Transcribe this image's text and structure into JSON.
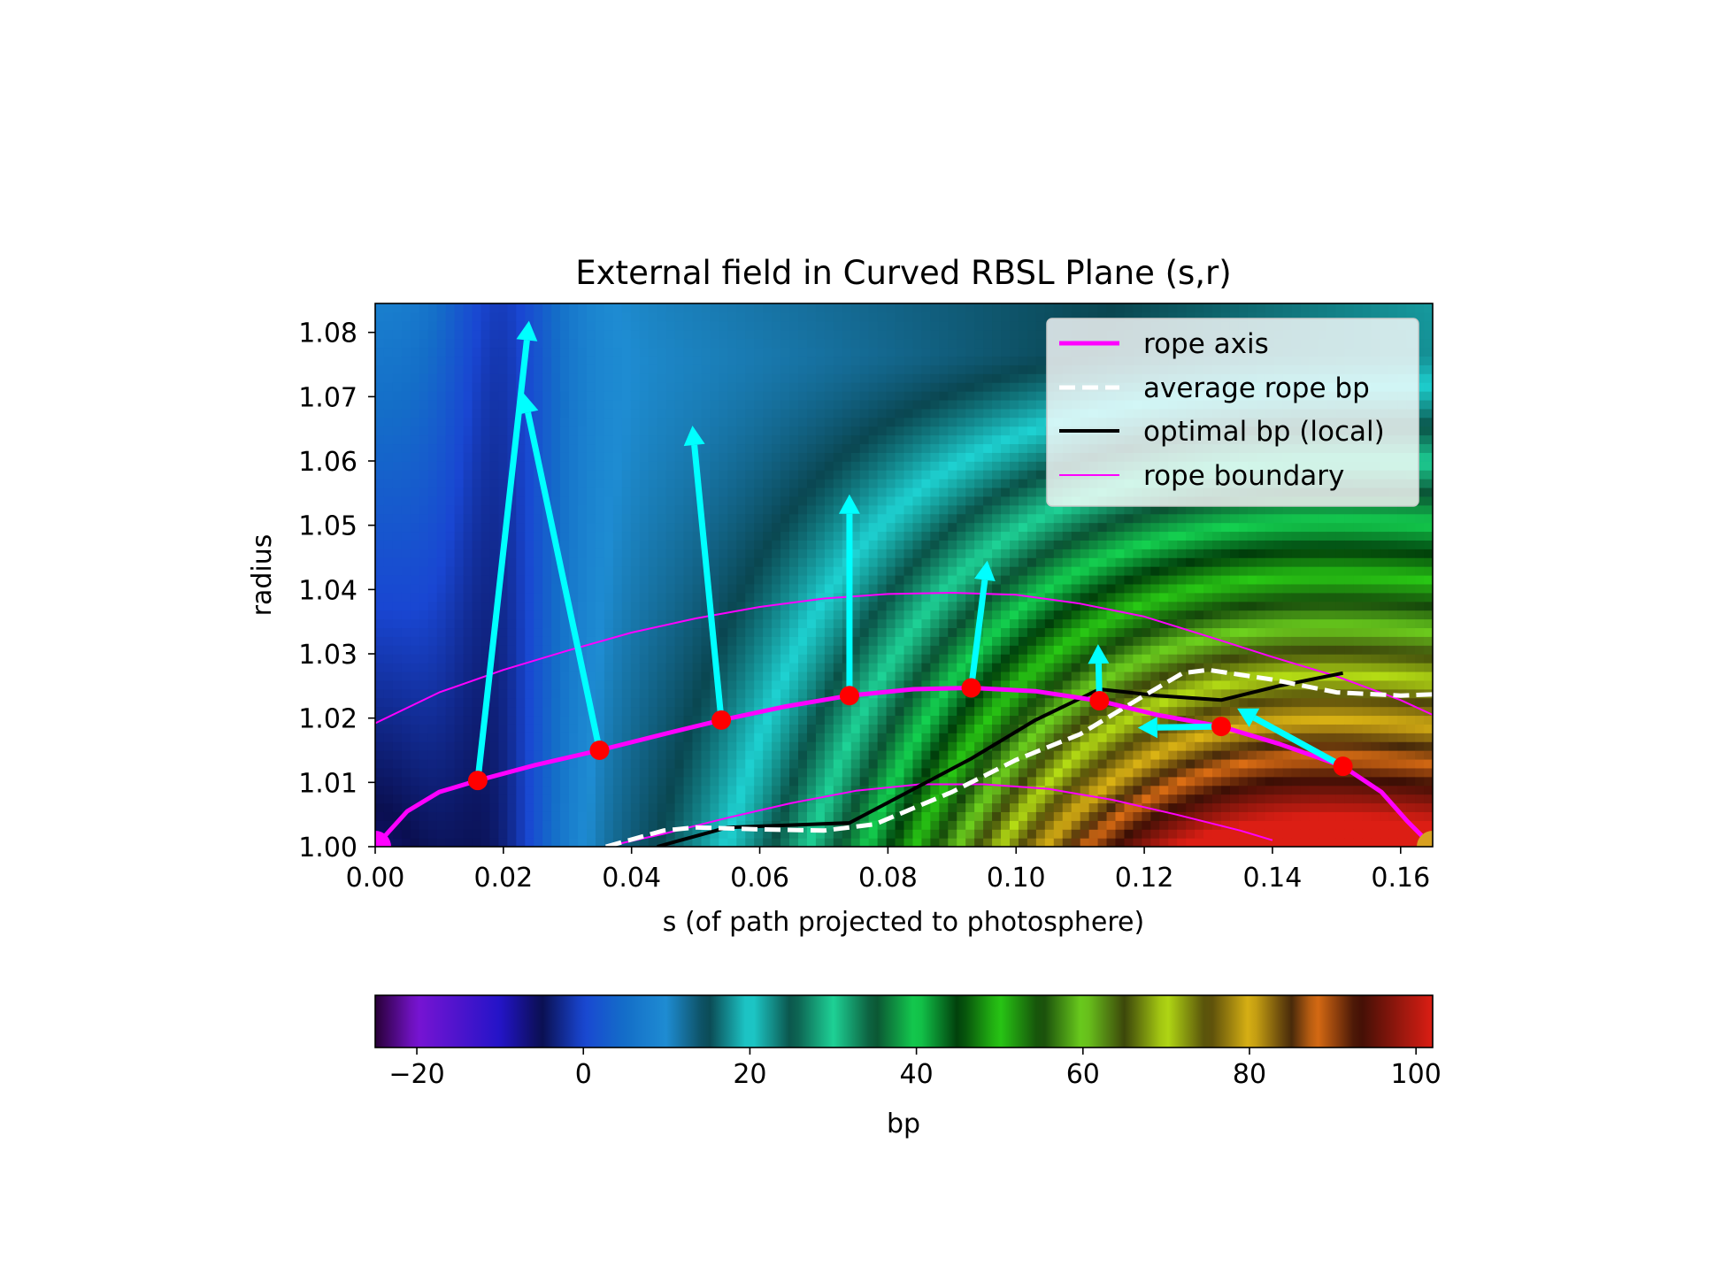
{
  "chart_data": [
    {
      "type": "heatmap",
      "title": "External field in Curved RBSL Plane (s,r)",
      "xlabel": "s (of path projected to photosphere)",
      "ylabel": "radius",
      "xlim": [
        0.0,
        0.165
      ],
      "ylim": [
        1.0,
        1.0845
      ],
      "xticks": [
        "0.00",
        "0.02",
        "0.04",
        "0.06",
        "0.08",
        "0.10",
        "0.12",
        "0.14",
        "0.16"
      ],
      "yticks": [
        "1.00",
        "1.01",
        "1.02",
        "1.03",
        "1.04",
        "1.05",
        "1.06",
        "1.07",
        "1.08"
      ],
      "colormap_field": "bp",
      "legend": {
        "placement": "upper right",
        "entries": [
          {
            "label": "rope axis",
            "color": "#ff00ff",
            "style": "solid-thick"
          },
          {
            "label": "average rope bp",
            "color": "#ffffff",
            "style": "dashed"
          },
          {
            "label": "optimal bp (local)",
            "color": "#000000",
            "style": "solid"
          },
          {
            "label": "rope boundary",
            "color": "#ff00ff",
            "style": "solid-thin"
          }
        ]
      },
      "series": [
        {
          "name": "rope axis",
          "color": "#ff00ff",
          "x": [
            0.0,
            0.005,
            0.01,
            0.016,
            0.025,
            0.035,
            0.045,
            0.054,
            0.064,
            0.074,
            0.084,
            0.093,
            0.103,
            0.113,
            0.122,
            0.132,
            0.141,
            0.151,
            0.157,
            0.161,
            0.165
          ],
          "y": [
            1.0,
            1.0055,
            1.0085,
            1.0103,
            1.0127,
            1.015,
            1.0175,
            1.0197,
            1.0218,
            1.0235,
            1.0245,
            1.0247,
            1.0242,
            1.0227,
            1.0205,
            1.0187,
            1.016,
            1.0125,
            1.0085,
            1.004,
            1.0
          ]
        },
        {
          "name": "average rope bp",
          "color": "#ffffff",
          "x": [
            0.036,
            0.045,
            0.05,
            0.06,
            0.07,
            0.078,
            0.09,
            0.1,
            0.11,
            0.12,
            0.126,
            0.13,
            0.14,
            0.15,
            0.16,
            0.165
          ],
          "y": [
            1.0,
            1.0025,
            1.003,
            1.0027,
            1.0025,
            1.0035,
            1.0085,
            1.0135,
            1.0175,
            1.0235,
            1.027,
            1.0275,
            1.026,
            1.024,
            1.0235,
            1.0237
          ]
        },
        {
          "name": "optimal bp (local)",
          "color": "#000000",
          "x": [
            0.044,
            0.055,
            0.074,
            0.093,
            0.103,
            0.113,
            0.122,
            0.132,
            0.141,
            0.151
          ],
          "y": [
            1.0,
            1.003,
            1.0037,
            1.0137,
            1.0197,
            1.0245,
            1.0235,
            1.0228,
            1.025,
            1.027
          ]
        },
        {
          "name": "rope boundary",
          "color": "#ff00ff",
          "x": [
            0.0,
            0.01,
            0.02,
            0.03,
            0.04,
            0.05,
            0.06,
            0.07,
            0.08,
            0.09,
            0.1,
            0.11,
            0.12,
            0.13,
            0.14,
            0.15,
            0.16,
            0.165
          ],
          "y": [
            1.0192,
            1.024,
            1.0275,
            1.0305,
            1.0333,
            1.0355,
            1.0373,
            1.0386,
            1.0393,
            1.0395,
            1.0392,
            1.0378,
            1.0358,
            1.0327,
            1.0295,
            1.0265,
            1.0228,
            1.0205
          ]
        },
        {
          "name": "rope boundary (lower)",
          "color": "#ff00ff",
          "x": [
            0.036,
            0.045,
            0.055,
            0.065,
            0.075,
            0.085,
            0.095,
            0.105,
            0.115,
            0.125,
            0.135,
            0.14
          ],
          "y": [
            1.0,
            1.002,
            1.0045,
            1.0068,
            1.0087,
            1.0097,
            1.0097,
            1.009,
            1.0073,
            1.005,
            1.0025,
            1.001
          ]
        }
      ],
      "markers": {
        "color": "#ff0000",
        "x": [
          0.016,
          0.035,
          0.054,
          0.074,
          0.093,
          0.113,
          0.132,
          0.151
        ],
        "y": [
          1.0103,
          1.015,
          1.0197,
          1.0235,
          1.0247,
          1.0227,
          1.0187,
          1.0125
        ]
      },
      "vectors": {
        "color": "#00ffff",
        "items": [
          {
            "x": 0.016,
            "y": 1.0103,
            "x_end": 0.024,
            "y_end": 1.0818
          },
          {
            "x": 0.035,
            "y": 1.015,
            "x_end": 0.0232,
            "y_end": 1.0705
          },
          {
            "x": 0.054,
            "y": 1.0197,
            "x_end": 0.0495,
            "y_end": 1.0655
          },
          {
            "x": 0.074,
            "y": 1.0235,
            "x_end": 0.074,
            "y_end": 1.0548
          },
          {
            "x": 0.093,
            "y": 1.0247,
            "x_end": 0.0955,
            "y_end": 1.0445
          },
          {
            "x": 0.113,
            "y": 1.0227,
            "x_end": 0.1128,
            "y_end": 1.0315
          },
          {
            "x": 0.132,
            "y": 1.0187,
            "x_end": 0.119,
            "y_end": 1.0185
          },
          {
            "x": 0.151,
            "y": 1.0125,
            "x_end": 0.1345,
            "y_end": 1.0215
          }
        ]
      },
      "footpoints": [
        {
          "x": 0.0,
          "y": 1.0,
          "color": "#ff00ff"
        },
        {
          "x": 0.165,
          "y": 1.0,
          "color": "#d8a020"
        }
      ]
    },
    {
      "type": "colorbar",
      "label": "bp",
      "range": [
        -25,
        102
      ],
      "ticks": [
        "−20",
        "0",
        "20",
        "40",
        "60",
        "80",
        "100"
      ],
      "tick_values": [
        -20,
        0,
        20,
        40,
        60,
        80,
        100
      ]
    }
  ]
}
